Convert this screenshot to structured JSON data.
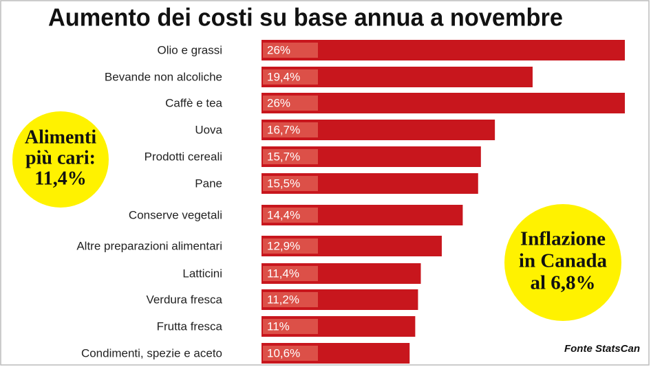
{
  "chart_data": {
    "type": "bar",
    "orientation": "horizontal",
    "title": "Aumento dei costi su base annua a novembre",
    "categories": [
      "Olio e grassi",
      "Bevande non alcoliche",
      "Caffè e tea",
      "Uova",
      "Prodotti cereali",
      "Pane",
      "Conserve vegetali",
      "Altre preparazioni alimentari",
      "Latticini",
      "Verdura fresca",
      "Frutta fresca",
      "Condimenti, spezie e aceto"
    ],
    "values": [
      26,
      19.4,
      26,
      16.7,
      15.7,
      15.5,
      14.4,
      12.9,
      11.4,
      11.2,
      11,
      10.6
    ],
    "value_labels": [
      "26%",
      "19,4%",
      "26%",
      "16,7%",
      "15,7%",
      "15,5%",
      "14,4%",
      "12,9%",
      "11,4%",
      "11,2%",
      "11%",
      "10,6%"
    ],
    "color": "#c8161d",
    "annotations": [
      {
        "lines": [
          "Alimenti",
          "più cari:",
          "11,4%"
        ]
      },
      {
        "lines": [
          "Inflazione",
          "in Canada",
          "al 6,8%"
        ]
      }
    ],
    "source": "Fonte StatsCan"
  }
}
